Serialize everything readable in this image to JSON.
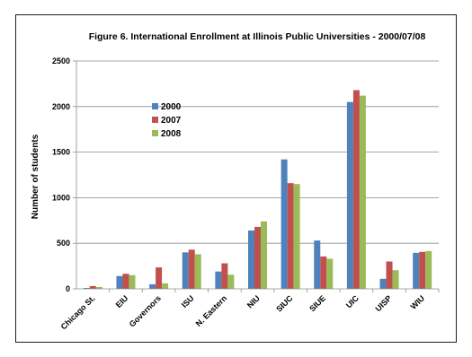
{
  "chart_data": {
    "type": "bar",
    "title": "Figure 6. International Enrollment at Illinois Public Universities - 2000/07/08",
    "xlabel": "",
    "ylabel": "Number of students",
    "ylim": [
      0,
      2500
    ],
    "yticks": [
      0,
      500,
      1000,
      1500,
      2000,
      2500
    ],
    "grid": "horizontal",
    "legend_position": "upper-left-inside",
    "categories": [
      "Chicago St.",
      "EIU",
      "Governors",
      "ISU",
      "N. Eastern",
      "NIU",
      "SIUC",
      "SIUE",
      "UIC",
      "UISP",
      "WIU"
    ],
    "series": [
      {
        "name": "2000",
        "color": "#4f81bd",
        "values": [
          10,
          140,
          50,
          400,
          190,
          640,
          1420,
          530,
          2050,
          110,
          395
        ]
      },
      {
        "name": "2007",
        "color": "#c0504d",
        "values": [
          30,
          165,
          235,
          430,
          280,
          680,
          1160,
          355,
          2180,
          300,
          405
        ]
      },
      {
        "name": "2008",
        "color": "#9bbb59",
        "values": [
          20,
          150,
          60,
          380,
          155,
          740,
          1150,
          330,
          2120,
          205,
          415
        ]
      }
    ]
  }
}
